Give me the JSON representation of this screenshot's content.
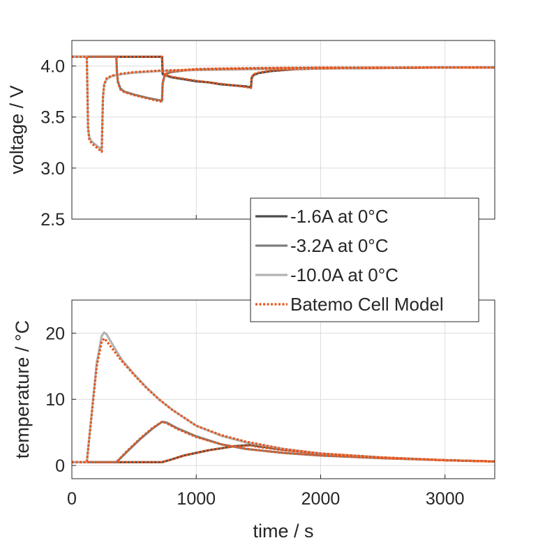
{
  "chart_data": [
    {
      "type": "line",
      "panel": "top",
      "title": "",
      "xlabel": "",
      "ylabel": "voltage / V",
      "xlim": [
        0,
        3400
      ],
      "ylim": [
        2.5,
        4.25
      ],
      "yticks": [
        2.5,
        3.0,
        3.5,
        4.0
      ],
      "ytick_labels": [
        "2.5",
        "3.0",
        "3.5",
        "4.0"
      ],
      "xticks": [
        0,
        1000,
        2000,
        3000
      ],
      "grid": true,
      "series": [
        {
          "name": "-1.6A at 0°C",
          "color": "#4d4d4d",
          "style": "solid",
          "x": [
            0,
            725,
            730,
            750,
            800,
            900,
            1000,
            1100,
            1200,
            1300,
            1400,
            1440,
            1445,
            1460,
            1500,
            1600,
            1800,
            2000,
            2500,
            3000,
            3400
          ],
          "y": [
            4.09,
            4.09,
            3.92,
            3.91,
            3.89,
            3.87,
            3.85,
            3.84,
            3.82,
            3.81,
            3.8,
            3.79,
            3.88,
            3.91,
            3.93,
            3.95,
            3.97,
            3.975,
            3.98,
            3.985,
            3.985
          ]
        },
        {
          "name": "-3.2A at 0°C",
          "color": "#7f7f7f",
          "style": "solid",
          "x": [
            0,
            358,
            362,
            370,
            390,
            420,
            500,
            600,
            700,
            725,
            730,
            745,
            770,
            800,
            900,
            1000,
            1200,
            1500,
            2000,
            3000,
            3400
          ],
          "y": [
            4.09,
            4.09,
            3.95,
            3.85,
            3.78,
            3.75,
            3.72,
            3.69,
            3.665,
            3.66,
            3.83,
            3.9,
            3.93,
            3.94,
            3.955,
            3.965,
            3.97,
            3.975,
            3.98,
            3.985,
            3.985
          ]
        },
        {
          "name": "-10.0A at 0°C",
          "color": "#b3b3b3",
          "style": "solid",
          "x": [
            0,
            120,
            125,
            130,
            140,
            160,
            190,
            220,
            240,
            245,
            250,
            260,
            280,
            320,
            400,
            500,
            700,
            1000,
            1500,
            2000,
            3000,
            3400
          ],
          "y": [
            4.09,
            4.09,
            3.75,
            3.4,
            3.3,
            3.26,
            3.23,
            3.2,
            3.18,
            3.45,
            3.7,
            3.82,
            3.87,
            3.9,
            3.92,
            3.935,
            3.95,
            3.96,
            3.97,
            3.975,
            3.985,
            3.985
          ]
        },
        {
          "name": "Batemo Cell Model",
          "color": "#e8561b",
          "style": "dotted",
          "x": [
            0,
            120,
            125,
            130,
            140,
            160,
            190,
            220,
            240,
            245,
            250,
            260,
            280,
            320,
            400,
            500,
            700,
            1000,
            1500,
            2000,
            3000,
            3400
          ],
          "y": [
            4.09,
            4.09,
            3.76,
            3.38,
            3.28,
            3.24,
            3.21,
            3.18,
            3.16,
            3.45,
            3.7,
            3.82,
            3.88,
            3.905,
            3.925,
            3.94,
            3.955,
            3.965,
            3.975,
            3.98,
            3.985,
            3.985
          ]
        },
        {
          "name": "Batemo Cell Model",
          "color": "#e8561b",
          "style": "dotted",
          "legend": false,
          "x": [
            0,
            358,
            362,
            370,
            390,
            420,
            500,
            600,
            700,
            725,
            730,
            745,
            770,
            800,
            900,
            1000,
            1200,
            1500,
            2000,
            3000,
            3400
          ],
          "y": [
            4.09,
            4.09,
            3.95,
            3.84,
            3.77,
            3.745,
            3.715,
            3.685,
            3.655,
            3.65,
            3.84,
            3.91,
            3.935,
            3.945,
            3.96,
            3.97,
            3.975,
            3.98,
            3.985,
            3.985,
            3.985
          ]
        },
        {
          "name": "Batemo Cell Model",
          "color": "#e8561b",
          "style": "dotted",
          "legend": false,
          "x": [
            0,
            725,
            730,
            750,
            800,
            900,
            1000,
            1100,
            1200,
            1300,
            1400,
            1440,
            1445,
            1460,
            1500,
            1600,
            1800,
            2000,
            2500,
            3000,
            3400
          ],
          "y": [
            4.09,
            4.09,
            3.93,
            3.915,
            3.895,
            3.875,
            3.855,
            3.84,
            3.825,
            3.81,
            3.795,
            3.785,
            3.89,
            3.92,
            3.935,
            3.955,
            3.97,
            3.978,
            3.982,
            3.985,
            3.985
          ]
        }
      ]
    },
    {
      "type": "line",
      "panel": "bottom",
      "title": "",
      "xlabel": "time / s",
      "ylabel": "temperature / °C",
      "xlim": [
        0,
        3400
      ],
      "ylim": [
        -2,
        25
      ],
      "yticks": [
        0,
        10,
        20
      ],
      "ytick_labels": [
        "0",
        "10",
        "20"
      ],
      "xticks": [
        0,
        1000,
        2000,
        3000
      ],
      "xtick_labels": [
        "0",
        "1000",
        "2000",
        "3000"
      ],
      "grid": true,
      "series": [
        {
          "name": "-1.6A at 0°C",
          "color": "#4d4d4d",
          "style": "solid",
          "x": [
            0,
            725,
            800,
            900,
            1000,
            1100,
            1200,
            1300,
            1440,
            1500,
            1700,
            2000,
            2500,
            3000,
            3400
          ],
          "y": [
            0.5,
            0.5,
            0.9,
            1.5,
            1.9,
            2.3,
            2.6,
            2.9,
            3.1,
            2.9,
            2.4,
            1.8,
            1.2,
            0.8,
            0.6
          ]
        },
        {
          "name": "-3.2A at 0°C",
          "color": "#7f7f7f",
          "style": "solid",
          "x": [
            0,
            358,
            450,
            550,
            650,
            725,
            760,
            850,
            1000,
            1200,
            1400,
            1700,
            2000,
            2500,
            3000,
            3400
          ],
          "y": [
            0.5,
            0.5,
            2.2,
            4.0,
            5.6,
            6.6,
            6.5,
            5.6,
            4.4,
            3.2,
            2.5,
            1.9,
            1.5,
            1.1,
            0.8,
            0.6
          ]
        },
        {
          "name": "-10.0A at 0°C",
          "color": "#b3b3b3",
          "style": "solid",
          "x": [
            0,
            120,
            150,
            200,
            240,
            260,
            280,
            320,
            400,
            500,
            600,
            700,
            800,
            1000,
            1200,
            1400,
            1700,
            2000,
            2500,
            3000,
            3400
          ],
          "y": [
            0.5,
            0.5,
            6.0,
            15.5,
            19.6,
            20.1,
            19.8,
            18.5,
            16.0,
            13.8,
            11.8,
            10.0,
            8.5,
            6.0,
            4.5,
            3.5,
            2.5,
            1.8,
            1.2,
            0.8,
            0.6
          ]
        },
        {
          "name": "Batemo Cell Model",
          "color": "#e8561b",
          "style": "dotted",
          "x": [
            0,
            120,
            150,
            200,
            240,
            260,
            280,
            320,
            400,
            500,
            600,
            700,
            800,
            1000,
            1200,
            1400,
            1700,
            2000,
            2500,
            3000,
            3400
          ],
          "y": [
            0.5,
            0.5,
            6.0,
            15.0,
            18.7,
            19.2,
            18.8,
            17.8,
            15.8,
            13.7,
            11.7,
            10.0,
            8.5,
            6.0,
            4.6,
            3.6,
            2.5,
            1.8,
            1.2,
            0.8,
            0.6
          ]
        },
        {
          "name": "Batemo Cell Model",
          "color": "#e8561b",
          "style": "dotted",
          "legend": false,
          "x": [
            0,
            358,
            450,
            550,
            650,
            725,
            760,
            850,
            1000,
            1200,
            1400,
            1700,
            2000,
            2500,
            3000,
            3400
          ],
          "y": [
            0.5,
            0.5,
            2.3,
            4.1,
            5.7,
            6.6,
            6.4,
            5.5,
            4.3,
            3.2,
            2.5,
            1.9,
            1.5,
            1.1,
            0.8,
            0.6
          ]
        },
        {
          "name": "Batemo Cell Model",
          "color": "#e8561b",
          "style": "dotted",
          "legend": false,
          "x": [
            0,
            725,
            800,
            900,
            1000,
            1100,
            1200,
            1300,
            1440,
            1500,
            1700,
            2000,
            2500,
            3000,
            3400
          ],
          "y": [
            0.5,
            0.5,
            0.9,
            1.5,
            1.9,
            2.3,
            2.6,
            2.9,
            3.0,
            2.8,
            2.3,
            1.8,
            1.2,
            0.8,
            0.6
          ]
        }
      ]
    }
  ],
  "legend": {
    "placement": "center-right, spanning between panels",
    "entries": [
      {
        "label": "-1.6A at 0°C",
        "color": "#4d4d4d",
        "style": "solid"
      },
      {
        "label": "-3.2A at 0°C",
        "color": "#7f7f7f",
        "style": "solid"
      },
      {
        "label": "-10.0A at 0°C",
        "color": "#b3b3b3",
        "style": "solid"
      },
      {
        "label": "Batemo Cell Model",
        "color": "#e8561b",
        "style": "dotted"
      }
    ]
  }
}
